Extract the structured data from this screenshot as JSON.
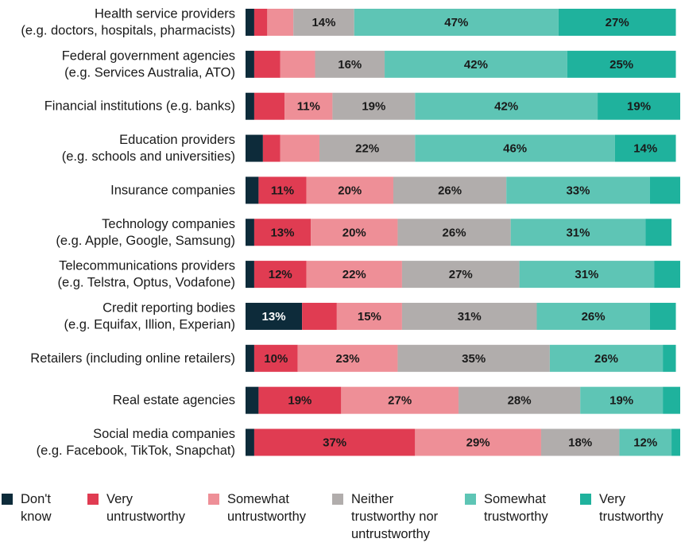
{
  "chart_data": {
    "type": "bar",
    "orientation": "horizontal",
    "stacked": true,
    "normalized": true,
    "title": "",
    "xlabel": "",
    "ylabel": "",
    "xlim": [
      0,
      100
    ],
    "legend_position": "bottom",
    "categories": [
      "Health service providers\n(e.g. doctors, hospitals, pharmacists)",
      "Federal government agencies\n(e.g. Services Australia, ATO)",
      "Financial institutions (e.g. banks)",
      "Education providers\n(e.g. schools and universities)",
      "Insurance companies",
      "Technology companies\n(e.g. Apple, Google, Samsung)",
      "Telecommunications providers\n(e.g. Telstra, Optus, Vodafone)",
      "Credit reporting bodies\n(e.g. Equifax, Illion, Experian)",
      "Retailers (including online retailers)",
      "Real estate agencies",
      "Social media companies\n(e.g. Facebook, TikTok, Snapchat)"
    ],
    "series": [
      {
        "name": "Don't\nknow",
        "color": "#0d2b3a",
        "label_color": "#ffffff",
        "values": [
          2,
          2,
          2,
          4,
          3,
          2,
          2,
          13,
          2,
          3,
          2
        ]
      },
      {
        "name": "Very\nuntrustworthy",
        "color": "#e03c52",
        "label_color": "#1a1a1a",
        "values": [
          3,
          6,
          7,
          4,
          11,
          13,
          12,
          8,
          10,
          19,
          37
        ]
      },
      {
        "name": "Somewhat\nuntrustworthy",
        "color": "#ee8f97",
        "label_color": "#1a1a1a",
        "values": [
          6,
          8,
          11,
          9,
          20,
          20,
          22,
          15,
          23,
          27,
          29
        ]
      },
      {
        "name": "Neither\ntrustworthy nor\nuntrustworthy",
        "color": "#b1adac",
        "label_color": "#1a1a1a",
        "values": [
          14,
          16,
          19,
          22,
          26,
          26,
          27,
          31,
          35,
          28,
          18
        ]
      },
      {
        "name": "Somewhat\ntrustworthy",
        "color": "#5ec5b5",
        "label_color": "#1a1a1a",
        "values": [
          47,
          42,
          42,
          46,
          33,
          31,
          31,
          26,
          26,
          19,
          12
        ]
      },
      {
        "name": "Very\ntrustworthy",
        "color": "#1fb29d",
        "label_color": "#1a1a1a",
        "values": [
          27,
          25,
          19,
          14,
          7,
          6,
          6,
          6,
          3,
          4,
          2
        ]
      }
    ],
    "data_labels": [
      [
        "",
        "",
        "",
        "14%",
        "47%",
        "27%"
      ],
      [
        "",
        "",
        "",
        "16%",
        "42%",
        "25%"
      ],
      [
        "",
        "",
        "11%",
        "19%",
        "42%",
        "19%"
      ],
      [
        "",
        "",
        "",
        "22%",
        "46%",
        "14%"
      ],
      [
        "",
        "11%",
        "20%",
        "26%",
        "33%",
        ""
      ],
      [
        "",
        "13%",
        "20%",
        "26%",
        "31%",
        ""
      ],
      [
        "",
        "12%",
        "22%",
        "27%",
        "31%",
        ""
      ],
      [
        "13%",
        "",
        "15%",
        "31%",
        "26%",
        ""
      ],
      [
        "",
        "10%",
        "23%",
        "35%",
        "26%",
        ""
      ],
      [
        "",
        "19%",
        "27%",
        "28%",
        "19%",
        ""
      ],
      [
        "",
        "37%",
        "29%",
        "18%",
        "12%",
        ""
      ]
    ]
  }
}
